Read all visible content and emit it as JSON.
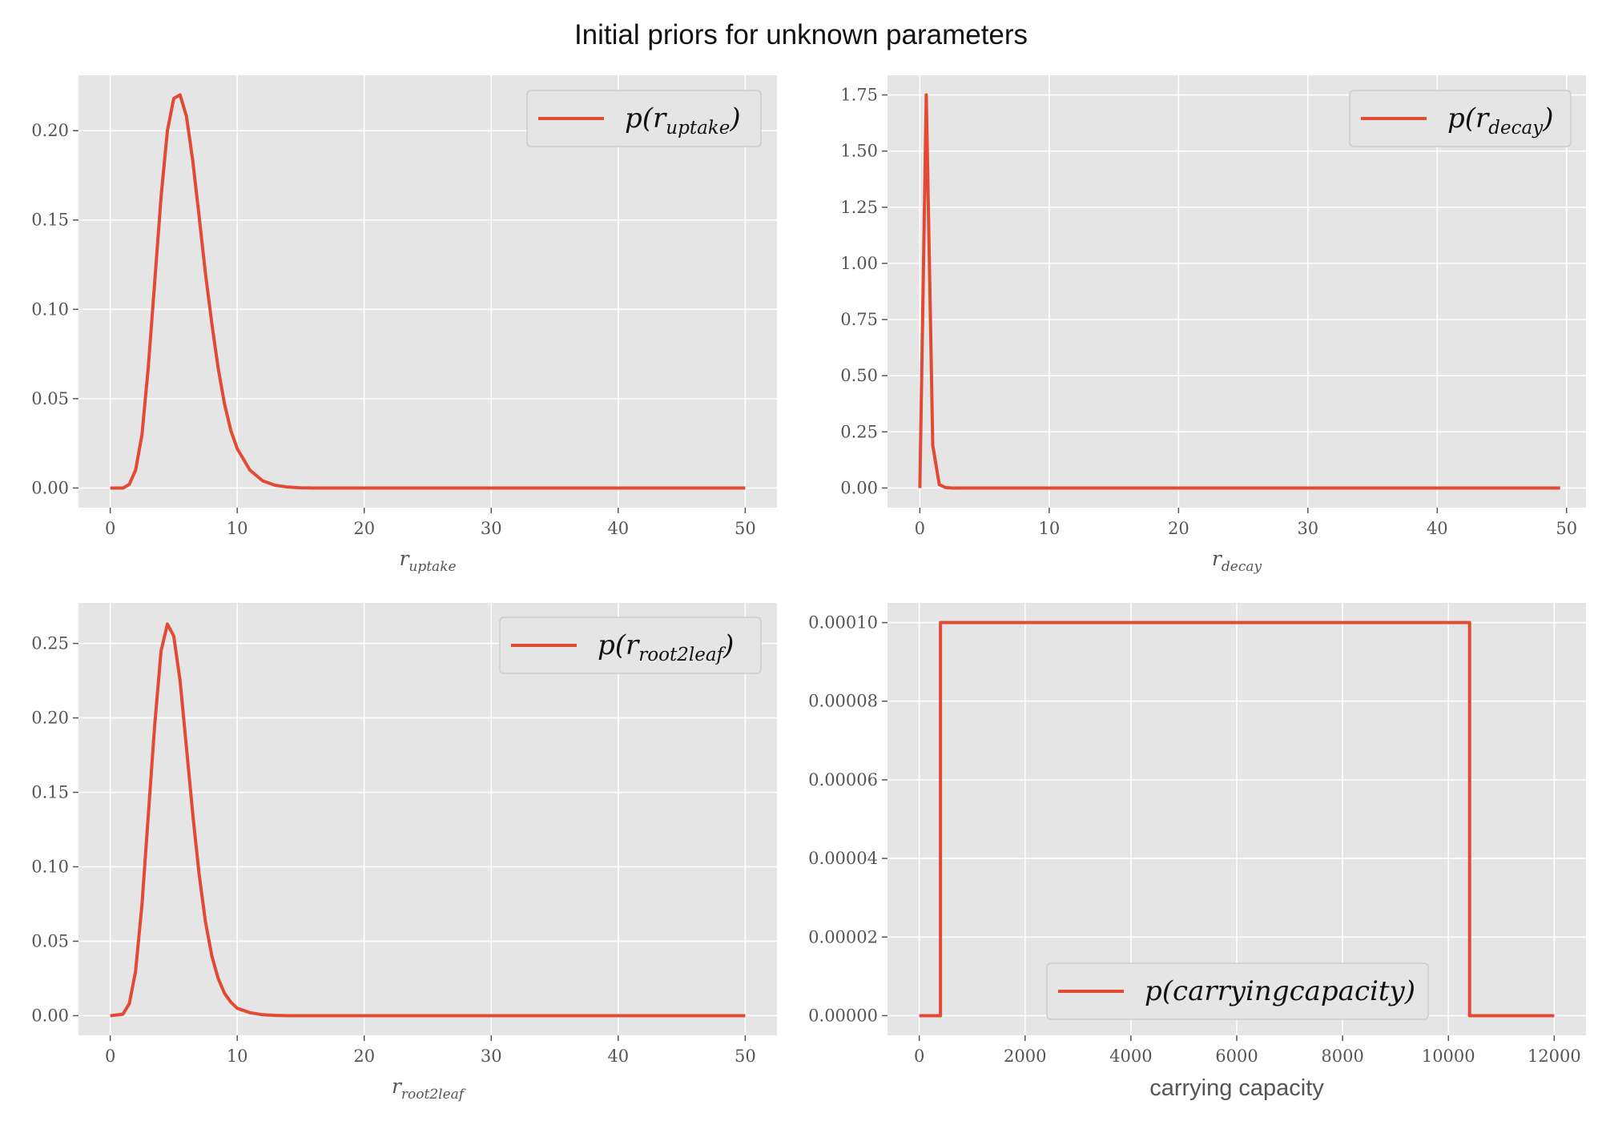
{
  "figure": {
    "title": "Initial priors for unknown parameters"
  },
  "colors": {
    "line": "#e24a33",
    "panel_bg": "#e5e5e5",
    "grid": "#ffffff",
    "tick_text": "#555555"
  },
  "chart_data": [
    {
      "type": "line",
      "title": "",
      "xlabel_base": "r",
      "xlabel_sub": "uptake",
      "ylabel": "",
      "xlim": [
        -2.5,
        52.5
      ],
      "ylim": [
        -0.011,
        0.231
      ],
      "xticks": [
        0,
        10,
        20,
        30,
        40,
        50
      ],
      "yticks": [
        0.0,
        0.05,
        0.1,
        0.15,
        0.2
      ],
      "ytick_labels": [
        "0.00",
        "0.05",
        "0.10",
        "0.15",
        "0.20"
      ],
      "grid": true,
      "legend_position": "upper right",
      "series": [
        {
          "name": "p(r_uptake)",
          "legend_prefix": "p(r",
          "legend_sub": "uptake",
          "legend_suffix": ")",
          "x": [
            0,
            1,
            1.5,
            2,
            2.5,
            3,
            3.5,
            4,
            4.5,
            5,
            5.5,
            6,
            6.5,
            7,
            7.5,
            8,
            8.5,
            9,
            9.5,
            10,
            11,
            12,
            13,
            14,
            15,
            16,
            18,
            20,
            30,
            40,
            50
          ],
          "y": [
            0,
            0,
            0.002,
            0.01,
            0.03,
            0.068,
            0.115,
            0.163,
            0.2,
            0.218,
            0.22,
            0.208,
            0.183,
            0.152,
            0.12,
            0.092,
            0.067,
            0.047,
            0.032,
            0.022,
            0.01,
            0.004,
            0.0015,
            0.0005,
            0.0001,
            0,
            0,
            0,
            0,
            0,
            0
          ]
        }
      ]
    },
    {
      "type": "line",
      "title": "",
      "xlabel_base": "r",
      "xlabel_sub": "decay",
      "ylabel": "",
      "xlim": [
        -2.5,
        51.5
      ],
      "ylim": [
        -0.0875,
        1.8375
      ],
      "xticks": [
        0,
        10,
        20,
        30,
        40,
        50
      ],
      "yticks": [
        0.0,
        0.25,
        0.5,
        0.75,
        1.0,
        1.25,
        1.5,
        1.75
      ],
      "ytick_labels": [
        "0.00",
        "0.25",
        "0.50",
        "0.75",
        "1.00",
        "1.25",
        "1.50",
        "1.75"
      ],
      "grid": true,
      "legend_position": "upper right",
      "series": [
        {
          "name": "p(r_decay)",
          "legend_prefix": "p(r",
          "legend_sub": "decay",
          "legend_suffix": ")",
          "x": [
            0,
            0.5,
            1.0,
            1.5,
            2.0,
            2.5,
            49.5
          ],
          "y": [
            0,
            1.75,
            0.19,
            0.015,
            0.002,
            0,
            0
          ]
        }
      ]
    },
    {
      "type": "line",
      "title": "",
      "xlabel_base": "r",
      "xlabel_sub": "root2leaf",
      "ylabel": "",
      "xlim": [
        -2.5,
        52.5
      ],
      "ylim": [
        -0.0132,
        0.2772
      ],
      "xticks": [
        0,
        10,
        20,
        30,
        40,
        50
      ],
      "yticks": [
        0.0,
        0.05,
        0.1,
        0.15,
        0.2,
        0.25
      ],
      "ytick_labels": [
        "0.00",
        "0.05",
        "0.10",
        "0.15",
        "0.20",
        "0.25"
      ],
      "grid": true,
      "legend_position": "upper right",
      "series": [
        {
          "name": "p(r_root2leaf)",
          "legend_prefix": "p(r",
          "legend_sub": "root2leaf",
          "legend_suffix": ")",
          "x": [
            0,
            1,
            1.5,
            2,
            2.5,
            3,
            3.5,
            4,
            4.5,
            5,
            5.5,
            6,
            6.5,
            7,
            7.5,
            8,
            8.5,
            9,
            9.5,
            10,
            11,
            12,
            13,
            14,
            16,
            20,
            30,
            40,
            50
          ],
          "y": [
            0,
            0.001,
            0.008,
            0.03,
            0.075,
            0.135,
            0.195,
            0.245,
            0.263,
            0.255,
            0.225,
            0.18,
            0.135,
            0.095,
            0.063,
            0.04,
            0.025,
            0.015,
            0.009,
            0.005,
            0.002,
            0.0006,
            0.0002,
            0,
            0,
            0,
            0,
            0,
            0
          ]
        }
      ]
    },
    {
      "type": "line",
      "title": "",
      "xlabel_text": "carrying capacity",
      "ylabel": "",
      "xlim": [
        -600,
        12600
      ],
      "ylim": [
        -5e-06,
        0.000105
      ],
      "xticks": [
        0,
        2000,
        4000,
        6000,
        8000,
        10000,
        12000
      ],
      "yticks": [
        0.0,
        2e-05,
        4e-05,
        6e-05,
        8e-05,
        0.0001
      ],
      "ytick_labels": [
        "0.00000",
        "0.00002",
        "0.00004",
        "0.00006",
        "0.00008",
        "0.00010"
      ],
      "grid": true,
      "legend_position": "lower center",
      "series": [
        {
          "name": "p(carryingcapacity)",
          "legend_prefix": "p(carryingcapacity)",
          "legend_sub": "",
          "legend_suffix": "",
          "x": [
            0,
            400,
            400,
            10400,
            10400,
            12000
          ],
          "y": [
            0,
            0,
            0.0001,
            0.0001,
            0,
            0
          ]
        }
      ]
    }
  ]
}
